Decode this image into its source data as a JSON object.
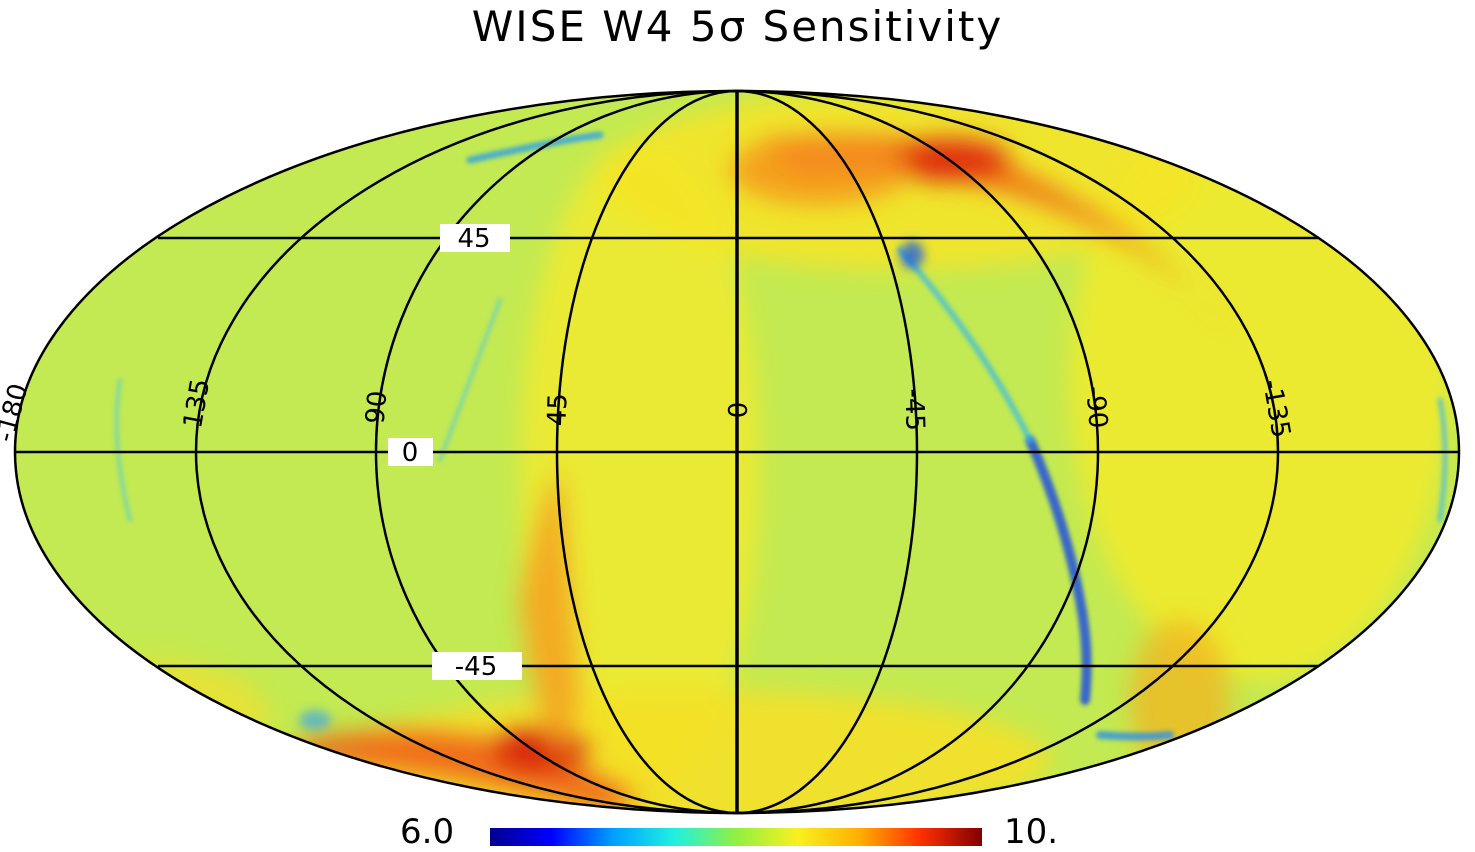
{
  "title": "WISE W4 5σ Sensitivity",
  "colorbar": {
    "min_label": "6.0",
    "max_label": "10.",
    "colormap": [
      "#00008f",
      "#0000ff",
      "#00a0ff",
      "#20f0e0",
      "#90f040",
      "#f8f020",
      "#ffb000",
      "#ff3000",
      "#800000"
    ]
  },
  "graticule": {
    "longitude_labels": [
      "-180",
      "135",
      "90",
      "45",
      "0",
      "-45",
      "-90",
      "-135"
    ],
    "latitude_labels": [
      "45",
      "0",
      "-45"
    ]
  },
  "colors": {
    "background_field": "#c8ec4a",
    "high_sensitivity_band": "#f0e23a",
    "hot_spot": "#e83a14",
    "low_streak": "#2aa0e8",
    "grid": "#000000"
  }
}
